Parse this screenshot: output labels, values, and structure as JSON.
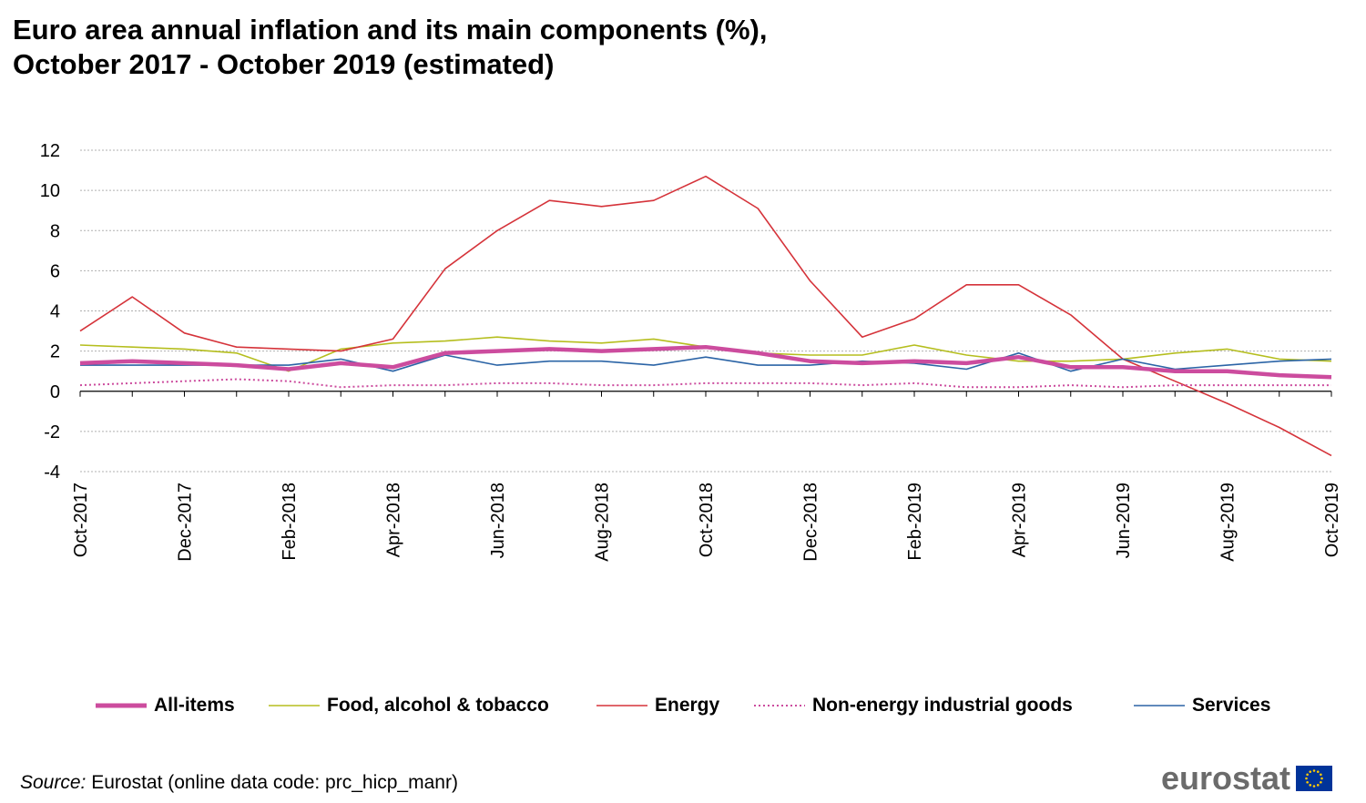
{
  "title": {
    "line1": "Euro area annual inflation and its main components (%),",
    "line2": "October 2017 - October 2019 (estimated)"
  },
  "chart_data": {
    "type": "line",
    "title": "Euro area annual inflation and its main components (%), October 2017 - October 2019 (estimated)",
    "x": [
      "Oct-2017",
      "Nov-2017",
      "Dec-2017",
      "Jan-2018",
      "Feb-2018",
      "Mar-2018",
      "Apr-2018",
      "May-2018",
      "Jun-2018",
      "Jul-2018",
      "Aug-2018",
      "Sep-2018",
      "Oct-2018",
      "Nov-2018",
      "Dec-2018",
      "Jan-2019",
      "Feb-2019",
      "Mar-2019",
      "Apr-2019",
      "May-2019",
      "Jun-2019",
      "Jul-2019",
      "Aug-2019",
      "Sep-2019",
      "Oct-2019"
    ],
    "x_tick_labels": [
      "Oct-2017",
      "Dec-2017",
      "Feb-2018",
      "Apr-2018",
      "Jun-2018",
      "Aug-2018",
      "Oct-2018",
      "Dec-2018",
      "Feb-2019",
      "Apr-2019",
      "Jun-2019",
      "Aug-2019",
      "Oct-2019"
    ],
    "ylim": [
      -4,
      12
    ],
    "y_ticks": [
      -4,
      -2,
      0,
      2,
      4,
      6,
      8,
      10,
      12
    ],
    "grid": true,
    "legend_position": "bottom",
    "series": [
      {
        "name": "All-items",
        "color": "#cc4c9e",
        "style": "thick",
        "values": [
          1.4,
          1.5,
          1.4,
          1.3,
          1.1,
          1.4,
          1.2,
          1.9,
          2.0,
          2.1,
          2.0,
          2.1,
          2.2,
          1.9,
          1.5,
          1.4,
          1.5,
          1.4,
          1.7,
          1.2,
          1.2,
          1.0,
          1.0,
          0.8,
          0.7
        ]
      },
      {
        "name": "Food, alcohol & tobacco",
        "color": "#b5be1e",
        "style": "solid",
        "values": [
          2.3,
          2.2,
          2.1,
          1.9,
          1.0,
          2.1,
          2.4,
          2.5,
          2.7,
          2.5,
          2.4,
          2.6,
          2.2,
          1.9,
          1.8,
          1.8,
          2.3,
          1.8,
          1.5,
          1.5,
          1.6,
          1.9,
          2.1,
          1.6,
          1.5
        ]
      },
      {
        "name": "Energy",
        "color": "#d5333a",
        "style": "solid",
        "values": [
          3.0,
          4.7,
          2.9,
          2.2,
          2.1,
          2.0,
          2.6,
          6.1,
          8.0,
          9.5,
          9.2,
          9.5,
          10.7,
          9.1,
          5.5,
          2.7,
          3.6,
          5.3,
          5.3,
          3.8,
          1.6,
          0.5,
          -0.6,
          -1.8,
          -3.2
        ]
      },
      {
        "name": "Non-energy industrial goods",
        "color": "#cc4c9e",
        "style": "dotted",
        "values": [
          0.3,
          0.4,
          0.5,
          0.6,
          0.5,
          0.2,
          0.3,
          0.3,
          0.4,
          0.4,
          0.3,
          0.3,
          0.4,
          0.4,
          0.4,
          0.3,
          0.4,
          0.2,
          0.2,
          0.3,
          0.2,
          0.3,
          0.3,
          0.3,
          0.3
        ]
      },
      {
        "name": "Services",
        "color": "#2b64a6",
        "style": "solid",
        "values": [
          1.3,
          1.3,
          1.3,
          1.3,
          1.3,
          1.6,
          1.0,
          1.8,
          1.3,
          1.5,
          1.5,
          1.3,
          1.7,
          1.3,
          1.3,
          1.5,
          1.4,
          1.1,
          1.9,
          1.0,
          1.6,
          1.1,
          1.3,
          1.5,
          1.6
        ]
      }
    ]
  },
  "source": {
    "prefix": "Source:",
    "text": " Eurostat (online data code: prc_hicp_manr)"
  },
  "logo": {
    "text": "eurostat",
    "flag_color": "#003399",
    "star_color": "#ffcc00"
  }
}
